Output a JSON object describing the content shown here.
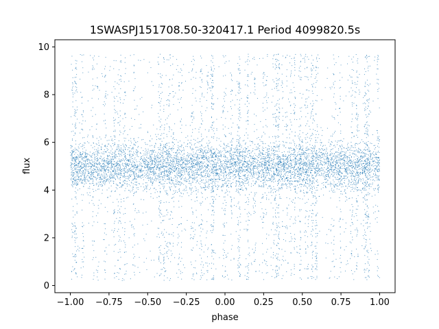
{
  "chart_data": {
    "type": "scatter",
    "title": "1SWASPJ151708.50-320417.1 Period 4099820.5s",
    "xlabel": "phase",
    "ylabel": "flux",
    "xlim": [
      -1.1,
      1.1
    ],
    "ylim": [
      -0.3,
      10.3
    ],
    "xticks": [
      -1.0,
      -0.75,
      -0.5,
      -0.25,
      0.0,
      0.25,
      0.5,
      0.75,
      1.0
    ],
    "xtick_labels": [
      "−1.00",
      "−0.75",
      "−0.50",
      "−0.25",
      "0.00",
      "0.25",
      "0.50",
      "0.75",
      "1.00"
    ],
    "yticks": [
      0,
      2,
      4,
      6,
      8,
      10
    ],
    "ytick_labels": [
      "0",
      "2",
      "4",
      "6",
      "8",
      "10"
    ],
    "grid": false,
    "point_color": "#1f77b4",
    "series": [
      {
        "x_range": [
          -1.0,
          1.0
        ],
        "y_center": 5.0,
        "y_core_spread": [
          4.0,
          6.0
        ],
        "y_full_range": [
          0.2,
          9.7
        ]
      }
    ]
  }
}
